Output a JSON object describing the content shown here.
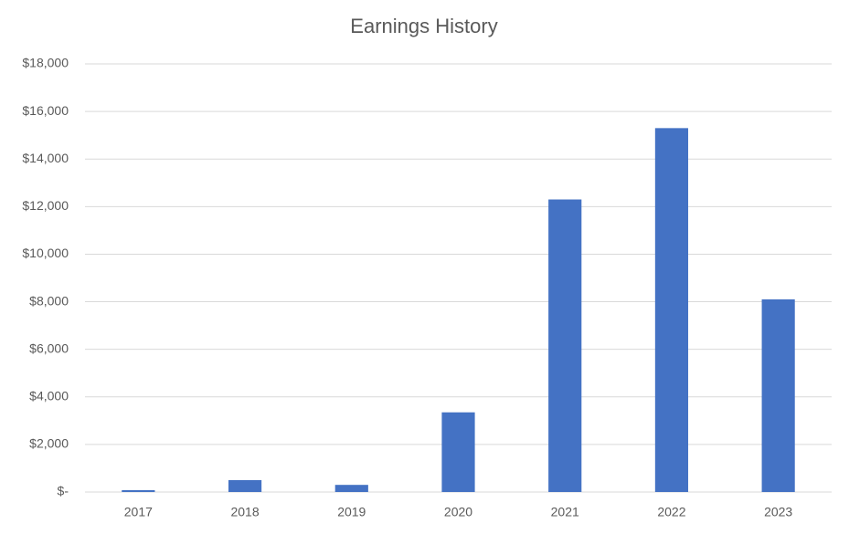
{
  "chart_data": {
    "type": "bar",
    "title": "Earnings History",
    "categories": [
      "2017",
      "2018",
      "2019",
      "2020",
      "2021",
      "2022",
      "2023"
    ],
    "values": [
      80,
      500,
      300,
      3350,
      12300,
      15300,
      8100
    ],
    "color": "#4472c4",
    "ylim": [
      0,
      18000
    ],
    "yticks": [
      {
        "value": 0,
        "label": "$-"
      },
      {
        "value": 2000,
        "label": "$2,000"
      },
      {
        "value": 4000,
        "label": "$4,000"
      },
      {
        "value": 6000,
        "label": "$6,000"
      },
      {
        "value": 8000,
        "label": "$8,000"
      },
      {
        "value": 10000,
        "label": "$10,000"
      },
      {
        "value": 12000,
        "label": "$12,000"
      },
      {
        "value": 14000,
        "label": "$14,000"
      },
      {
        "value": 16000,
        "label": "$16,000"
      },
      {
        "value": 18000,
        "label": "$18,000"
      }
    ],
    "grid": true
  }
}
